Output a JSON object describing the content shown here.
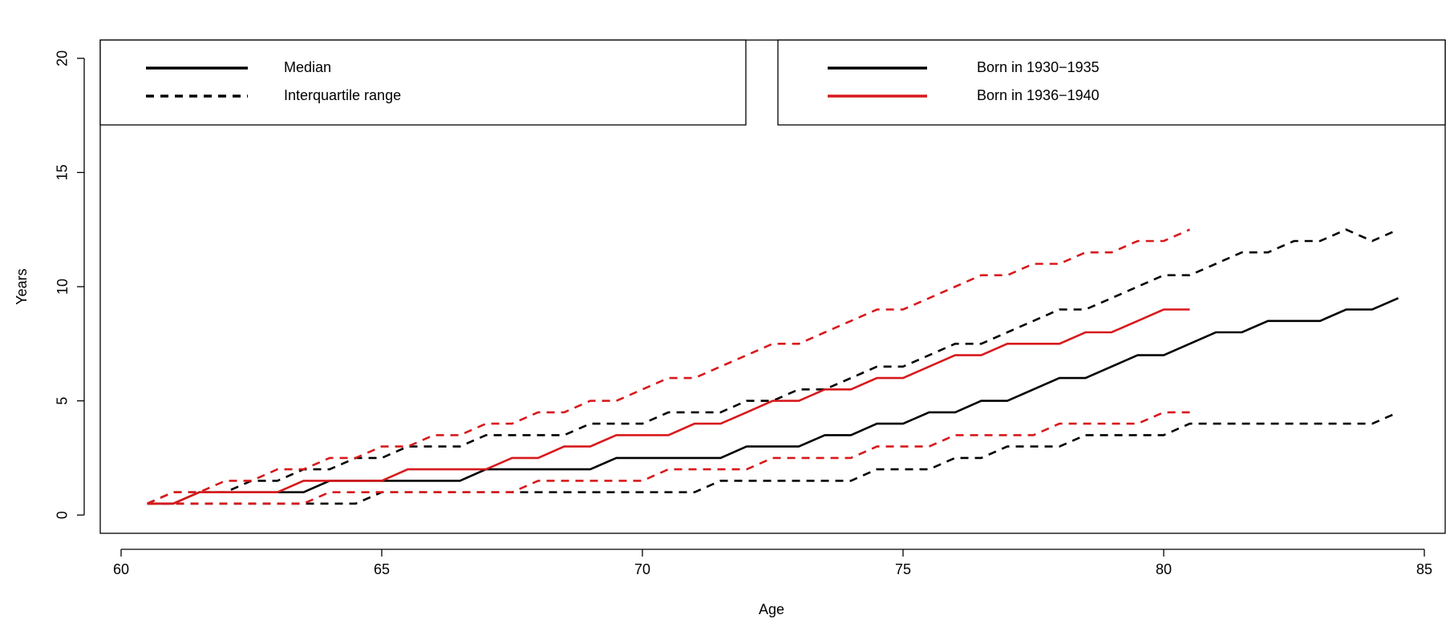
{
  "chart_data": {
    "type": "line",
    "x_label": "Age",
    "y_label": "Years",
    "x": [
      60.5,
      61,
      61.5,
      62,
      62.5,
      63,
      63.5,
      64,
      64.5,
      65,
      65.5,
      66,
      66.5,
      67,
      67.5,
      68,
      68.5,
      69,
      69.5,
      70,
      70.5,
      71,
      71.5,
      72,
      72.5,
      73,
      73.5,
      74,
      74.5,
      75,
      75.5,
      76,
      76.5,
      77,
      77.5,
      78,
      78.5,
      79,
      79.5,
      80,
      80.5,
      81,
      81.5,
      82,
      82.5,
      83,
      83.5,
      84,
      84.5
    ],
    "series": [
      {
        "name": "Born in 1930−1935",
        "color": "#000000",
        "median": [
          0.5,
          0.5,
          1,
          1,
          1,
          1,
          1,
          1.5,
          1.5,
          1.5,
          1.5,
          1.5,
          1.5,
          2,
          2,
          2,
          2,
          2,
          2.5,
          2.5,
          2.5,
          2.5,
          2.5,
          3,
          3,
          3,
          3.5,
          3.5,
          4,
          4,
          4.5,
          4.5,
          5,
          5,
          5.5,
          6,
          6,
          6.5,
          7,
          7,
          7.5,
          8,
          8,
          8.5,
          8.5,
          8.5,
          9,
          9,
          9.5
        ],
        "lower": [
          0.5,
          0.5,
          0.5,
          0.5,
          0.5,
          0.5,
          0.5,
          0.5,
          0.5,
          1,
          1,
          1,
          1,
          1,
          1,
          1,
          1,
          1,
          1,
          1,
          1,
          1,
          1.5,
          1.5,
          1.5,
          1.5,
          1.5,
          1.5,
          2,
          2,
          2,
          2.5,
          2.5,
          3,
          3,
          3,
          3.5,
          3.5,
          3.5,
          3.5,
          4,
          4,
          4,
          4,
          4,
          4,
          4,
          4,
          4.5
        ],
        "upper": [
          0.5,
          1,
          1,
          1,
          1.5,
          1.5,
          2,
          2,
          2.5,
          2.5,
          3,
          3,
          3,
          3.5,
          3.5,
          3.5,
          3.5,
          4,
          4,
          4,
          4.5,
          4.5,
          4.5,
          5,
          5,
          5.5,
          5.5,
          6,
          6.5,
          6.5,
          7,
          7.5,
          7.5,
          8,
          8.5,
          9,
          9,
          9.5,
          10,
          10.5,
          10.5,
          11,
          11.5,
          11.5,
          12,
          12,
          12.5,
          12,
          12.5
        ]
      },
      {
        "name": "Born in 1936−1940",
        "color": "#d7191c",
        "median": [
          0.5,
          0.5,
          1,
          1,
          1,
          1,
          1.5,
          1.5,
          1.5,
          1.5,
          2,
          2,
          2,
          2,
          2.5,
          2.5,
          3,
          3,
          3.5,
          3.5,
          3.5,
          4,
          4,
          4.5,
          5,
          5,
          5.5,
          5.5,
          6,
          6,
          6.5,
          7,
          7,
          7.5,
          7.5,
          7.5,
          8,
          8,
          8.5,
          9,
          9,
          null,
          null,
          null,
          null,
          null,
          null,
          null,
          null
        ],
        "lower": [
          0.5,
          0.5,
          0.5,
          0.5,
          0.5,
          0.5,
          0.5,
          1,
          1,
          1,
          1,
          1,
          1,
          1,
          1,
          1.5,
          1.5,
          1.5,
          1.5,
          1.5,
          2,
          2,
          2,
          2,
          2.5,
          2.5,
          2.5,
          2.5,
          3,
          3,
          3,
          3.5,
          3.5,
          3.5,
          3.5,
          4,
          4,
          4,
          4,
          4.5,
          4.5,
          null,
          null,
          null,
          null,
          null,
          null,
          null,
          null
        ],
        "upper": [
          0.5,
          1,
          1,
          1.5,
          1.5,
          2,
          2,
          2.5,
          2.5,
          3,
          3,
          3.5,
          3.5,
          4,
          4,
          4.5,
          4.5,
          5,
          5,
          5.5,
          6,
          6,
          6.5,
          7,
          7.5,
          7.5,
          8,
          8.5,
          9,
          9,
          9.5,
          10,
          10.5,
          10.5,
          11,
          11,
          11.5,
          11.5,
          12,
          12,
          12.5,
          null,
          null,
          null,
          null,
          null,
          null,
          null,
          null
        ]
      }
    ],
    "linetypes": [
      {
        "label": "Median",
        "style": "solid"
      },
      {
        "label": "Interquartile range",
        "style": "dashed"
      }
    ],
    "xlim": [
      59.6,
      85.4
    ],
    "ylim": [
      -0.8,
      20.8
    ],
    "xticks": [
      60,
      65,
      70,
      75,
      80,
      85
    ],
    "yticks": [
      0,
      5,
      10,
      15,
      20
    ]
  }
}
